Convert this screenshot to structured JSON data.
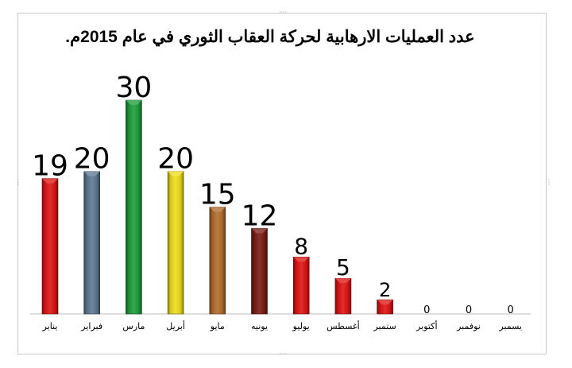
{
  "chart_data": {
    "type": "bar",
    "title": "عدد العمليات الارهابية لحركة العقاب الثوري في عام 2015م.",
    "categories": [
      "يناير",
      "فبراير",
      "مارس",
      "أبريل",
      "مايو",
      "يونيه",
      "يوليو",
      "أغسطس",
      "ستمبر",
      "أكتوبر",
      "نوفمبر",
      "يسمبر"
    ],
    "values": [
      19,
      20,
      30,
      20,
      15,
      12,
      8,
      5,
      2,
      0,
      0,
      0
    ],
    "bar_colors": [
      "#e01414",
      "#5f7a94",
      "#1e9e3c",
      "#f0dc1e",
      "#b26e2e",
      "#7a1c14",
      "#e01414",
      "#e01414",
      "#e01414",
      "#e01414",
      "#e01414",
      "#e01414"
    ],
    "ylim": [
      0,
      30
    ],
    "grid": false,
    "legend": "none",
    "xlabel": "",
    "ylabel": ""
  }
}
